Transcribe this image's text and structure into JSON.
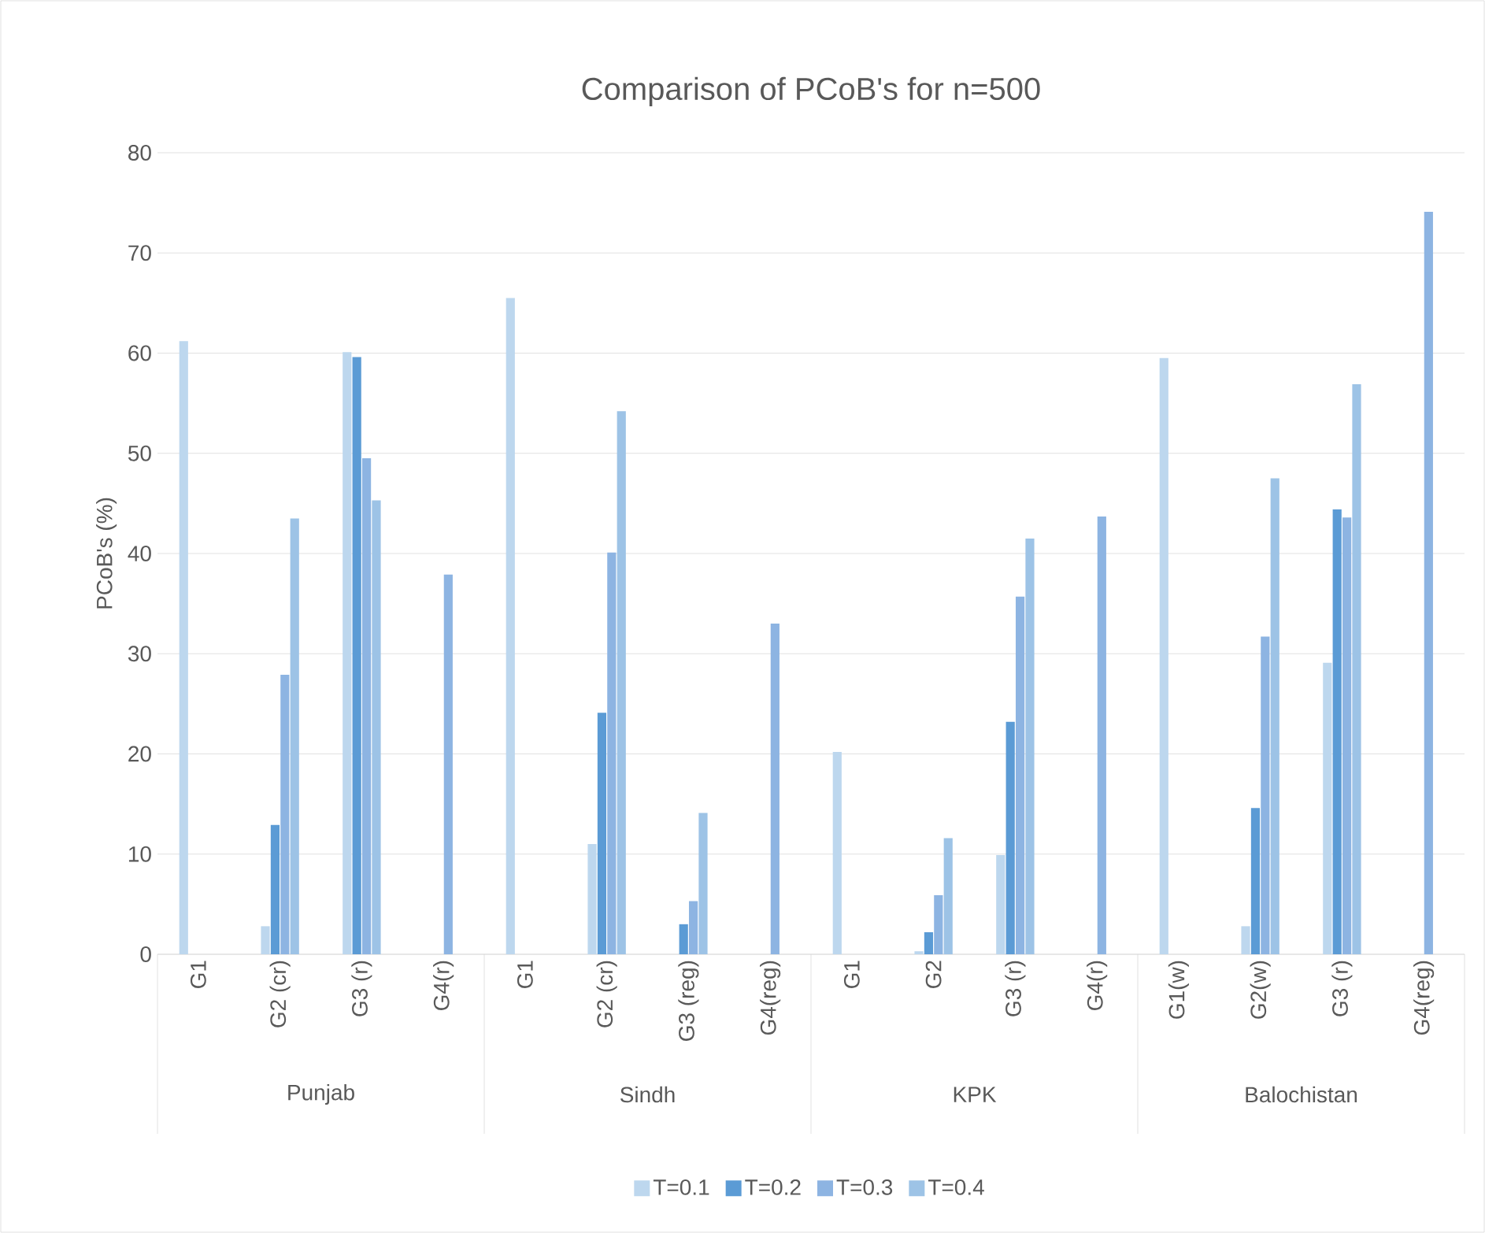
{
  "chart_data": {
    "type": "bar",
    "title": "Comparison of PCoB's for n=500",
    "ylabel": "PCoB's (%)",
    "categories": [
      "G1",
      "G2 (cr)",
      "G3 (r)",
      "G4(r)",
      "G1",
      "G2 (cr)",
      "G3 (reg)",
      "G4(reg)",
      "G1",
      "G2",
      "G3 (r)",
      "G4(r)",
      "G1(w)",
      "G2(w)",
      "G3 (r)",
      "G4(reg)"
    ],
    "series": [
      {
        "name": "T=0.1",
        "color": "#bdd7ee",
        "values": [
          61.2,
          2.8,
          60.1,
          null,
          65.5,
          11.0,
          null,
          null,
          20.2,
          0.3,
          9.9,
          null,
          59.5,
          2.8,
          29.1,
          null
        ]
      },
      {
        "name": "T=0.2",
        "color": "#5b9bd5",
        "values": [
          null,
          12.9,
          59.6,
          null,
          null,
          24.1,
          3.0,
          null,
          null,
          2.2,
          23.2,
          null,
          null,
          14.6,
          44.4,
          null
        ]
      },
      {
        "name": "T=0.3",
        "color": "#8db4e2",
        "values": [
          null,
          27.9,
          49.5,
          37.9,
          null,
          40.1,
          5.3,
          33.0,
          null,
          5.9,
          35.7,
          43.7,
          null,
          31.7,
          43.6,
          74.1
        ]
      },
      {
        "name": "T=0.4",
        "color": "#9dc3e6",
        "values": [
          null,
          43.5,
          45.3,
          null,
          null,
          54.2,
          14.1,
          null,
          null,
          11.6,
          41.5,
          null,
          null,
          47.5,
          56.9,
          null
        ]
      }
    ],
    "ylim": [
      0,
      80
    ],
    "yticks": [
      0,
      10,
      20,
      30,
      40,
      50,
      60,
      70,
      80
    ],
    "grid": "y",
    "legend": "bottom",
    "annotations": [
      "Punjab",
      "Sindh",
      "KPK",
      "Balochistan"
    ]
  }
}
